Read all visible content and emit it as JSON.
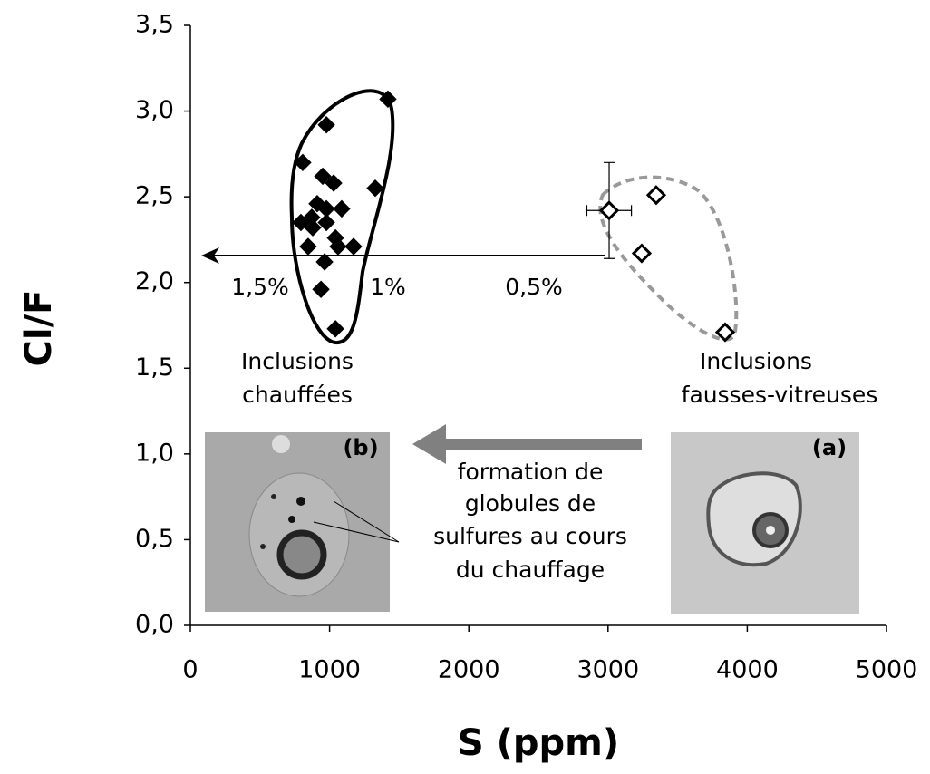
{
  "chart_data": {
    "type": "scatter",
    "x_label": "S (ppm)",
    "y_label": "Cl/F",
    "xlim": [
      0,
      5000
    ],
    "xticks": [
      0,
      1000,
      2000,
      3000,
      4000,
      5000
    ],
    "ylim": [
      0,
      3.5
    ],
    "yticks": [
      {
        "value": 0,
        "label": "0,0"
      },
      {
        "value": 0.5,
        "label": "0,5"
      },
      {
        "value": 1,
        "label": "1,0"
      },
      {
        "value": 1.5,
        "label": "1,5"
      },
      {
        "value": 2,
        "label": "2,0"
      },
      {
        "value": 2.5,
        "label": "2,5"
      },
      {
        "value": 3,
        "label": "3,0"
      },
      {
        "value": 3.5,
        "label": "3,5"
      }
    ],
    "grid": false,
    "series": [
      {
        "marker": "diamond",
        "color": "#000000",
        "filled": true,
        "x": [
          1419,
          977,
          807,
          951,
          1029,
          1328,
          911,
          977,
          1087,
          872,
          794,
          977,
          879,
          1042,
          846,
          1061,
          1172,
          964,
          938,
          1042
        ],
        "values": [
          3.07,
          2.92,
          2.7,
          2.62,
          2.58,
          2.55,
          2.46,
          2.43,
          2.43,
          2.38,
          2.35,
          2.35,
          2.32,
          2.26,
          2.21,
          2.21,
          2.21,
          2.12,
          1.96,
          1.73
        ]
      },
      {
        "marker": "diamond",
        "color": "#000000",
        "filled": false,
        "x": [
          3008,
          3242,
          3346,
          3841
        ],
        "values": [
          2.42,
          2.17,
          2.51,
          1.71
        ],
        "x_errors": [
          160,
          null,
          null,
          null
        ],
        "y_errors": [
          0.28,
          null,
          null,
          null
        ]
      }
    ],
    "annotations": {
      "percent_labels": [
        "1,5%",
        "1%",
        "0,5%"
      ],
      "heated": [
        "Inclusions",
        "chauffées"
      ],
      "glassy": [
        "Inclusions",
        "fausses-vitreuses"
      ],
      "process": [
        "formation de",
        "globules de",
        "sulfures au cours",
        "du chauffage"
      ],
      "inset_b": "(b)",
      "inset_a": "(a)"
    }
  }
}
